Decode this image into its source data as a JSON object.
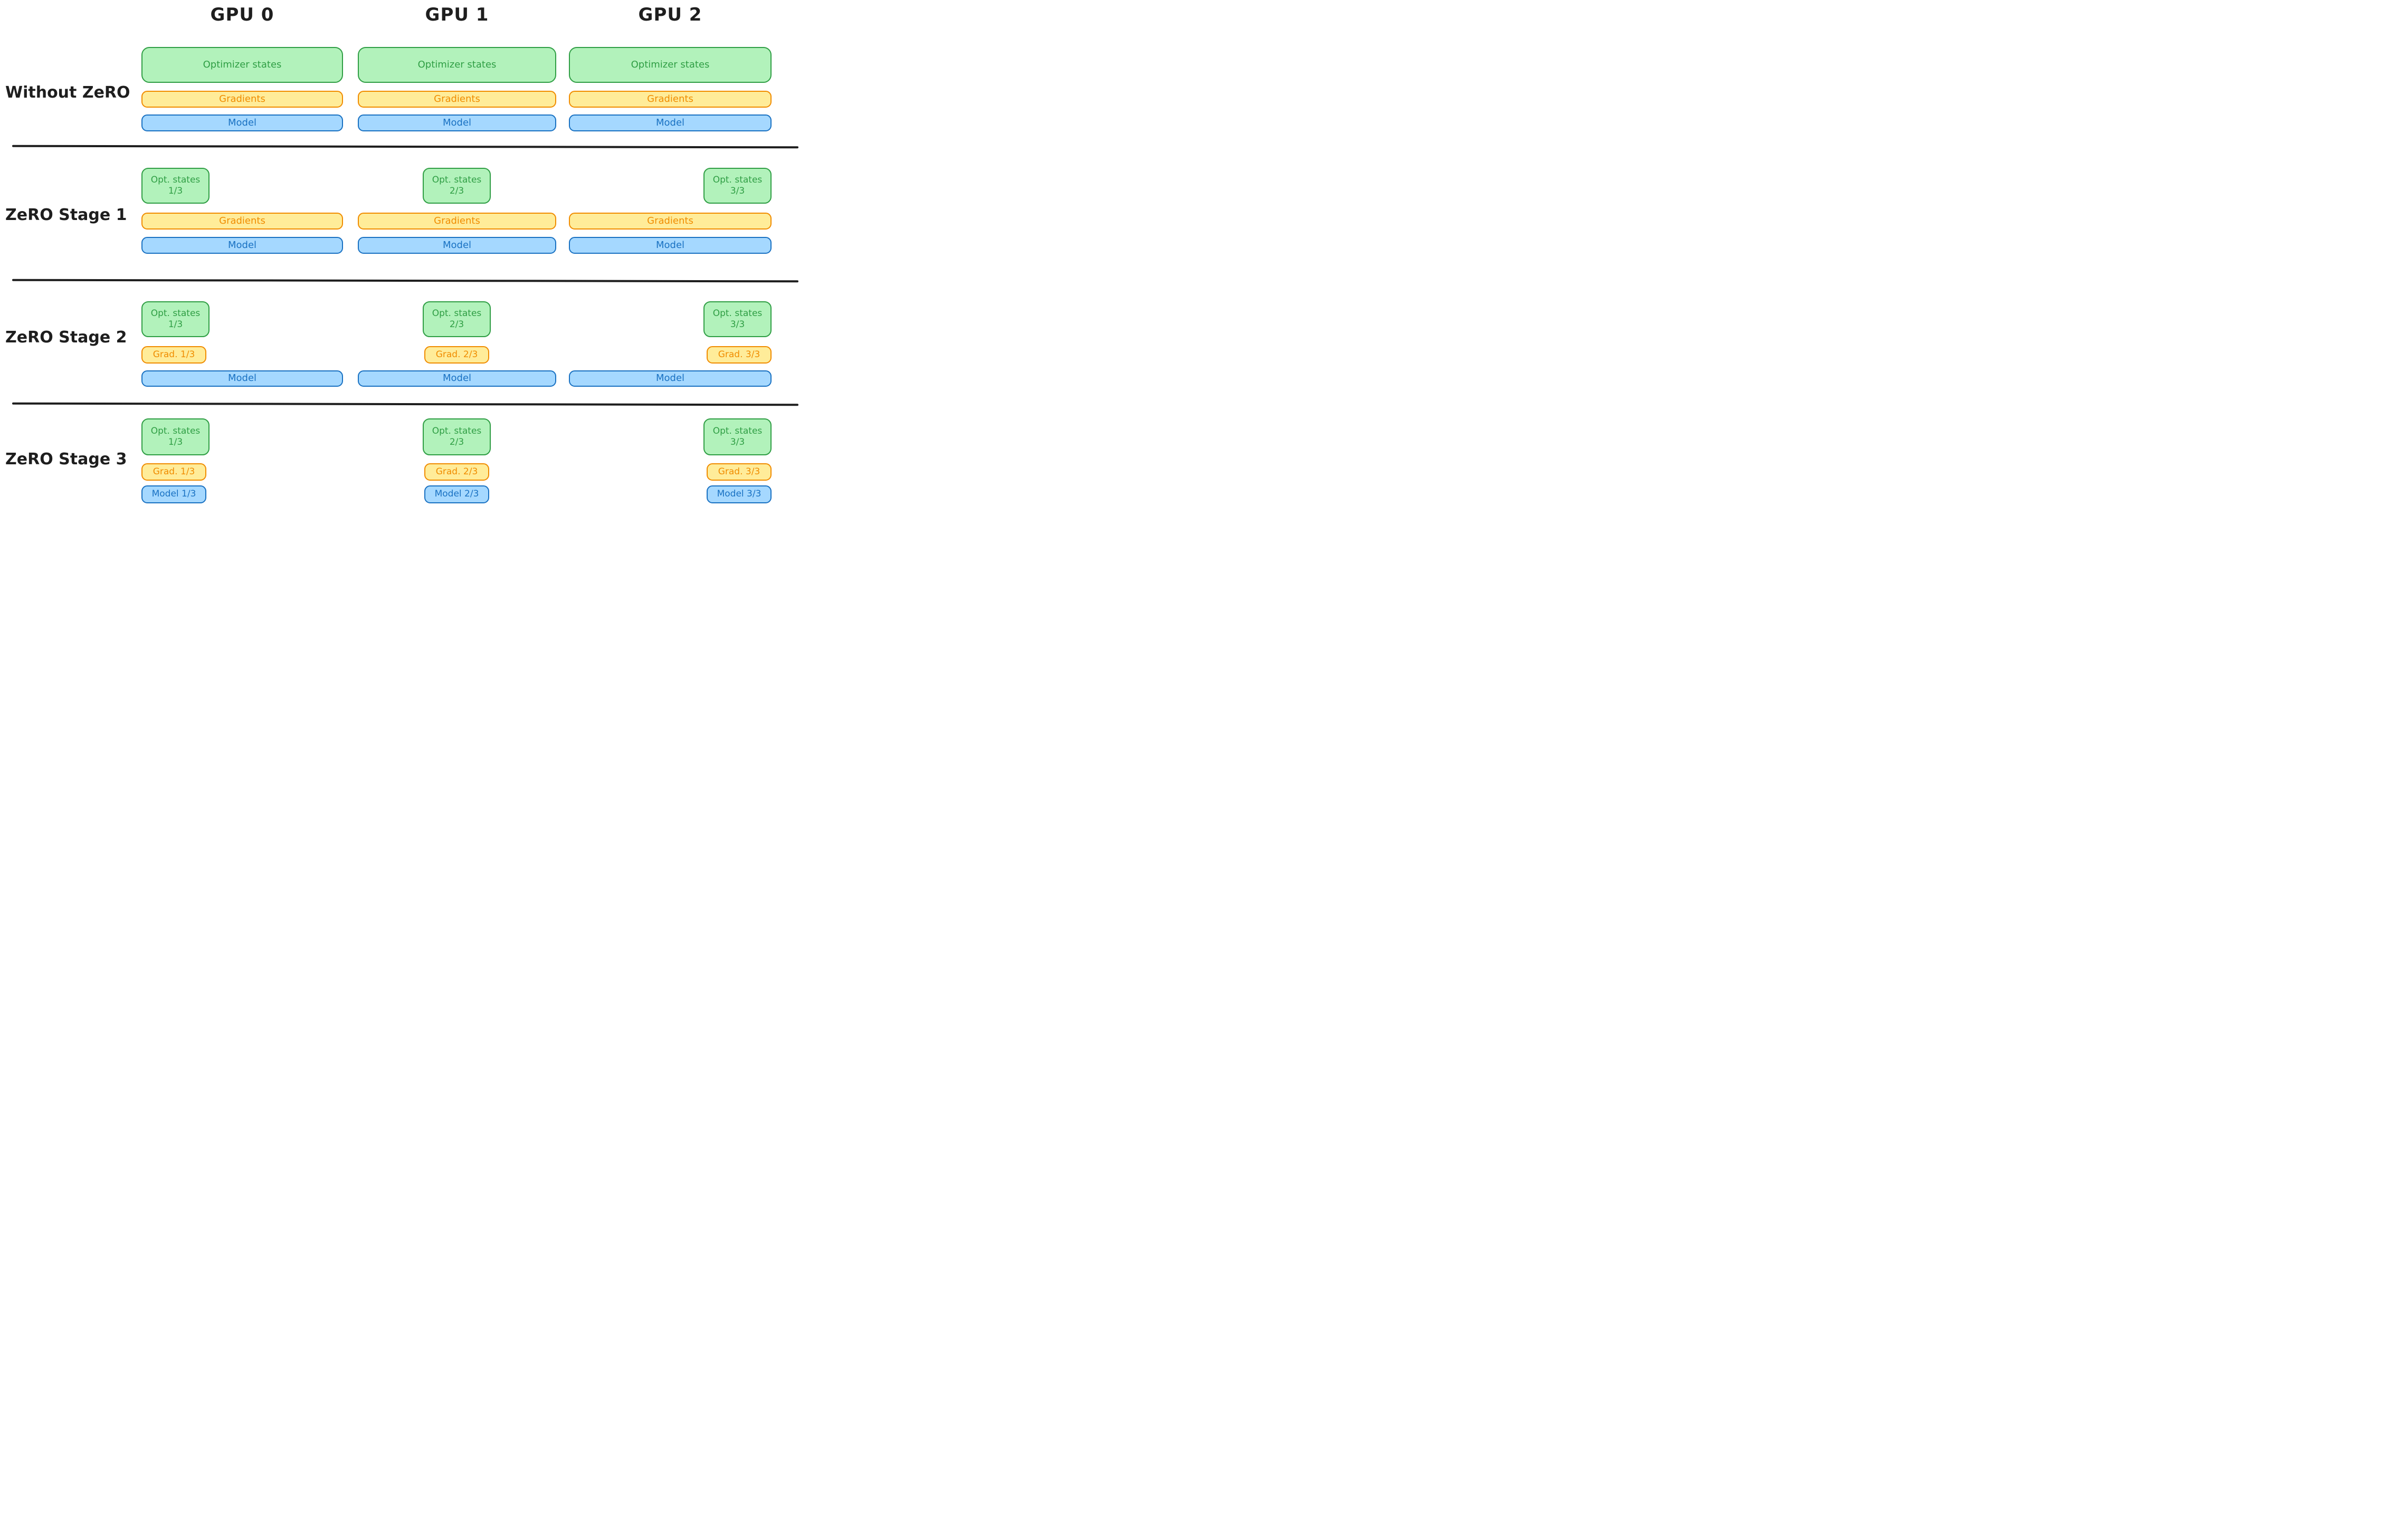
{
  "header": {
    "gpus": [
      "GPU 0",
      "GPU 1",
      "GPU 2"
    ]
  },
  "palette": {
    "optimizer": {
      "fill": "#b2f2bb",
      "stroke": "#2f9e44"
    },
    "gradients": {
      "fill": "#ffec99",
      "stroke": "#f08c00"
    },
    "model": {
      "fill": "#a5d8ff",
      "stroke": "#1971c2"
    },
    "heading_text": "#1e1e1e",
    "divider": "#1e1e1e"
  },
  "rows": [
    {
      "label": "Without ZeRO",
      "gpu0": {
        "optimizer": "Optimizer states",
        "gradients": "Gradients",
        "model": "Model"
      },
      "gpu1": {
        "optimizer": "Optimizer states",
        "gradients": "Gradients",
        "model": "Model"
      },
      "gpu2": {
        "optimizer": "Optimizer states",
        "gradients": "Gradients",
        "model": "Model"
      }
    },
    {
      "label": "ZeRO Stage 1",
      "gpu0": {
        "optimizer_line1": "Opt. states",
        "optimizer_line2": "1/3",
        "gradients": "Gradients",
        "model": "Model"
      },
      "gpu1": {
        "optimizer_line1": "Opt. states",
        "optimizer_line2": "2/3",
        "gradients": "Gradients",
        "model": "Model"
      },
      "gpu2": {
        "optimizer_line1": "Opt. states",
        "optimizer_line2": "3/3",
        "gradients": "Gradients",
        "model": "Model"
      }
    },
    {
      "label": "ZeRO Stage 2",
      "gpu0": {
        "optimizer_line1": "Opt. states",
        "optimizer_line2": "1/3",
        "gradients": "Grad. 1/3",
        "model": "Model"
      },
      "gpu1": {
        "optimizer_line1": "Opt. states",
        "optimizer_line2": "2/3",
        "gradients": "Grad. 2/3",
        "model": "Model"
      },
      "gpu2": {
        "optimizer_line1": "Opt. states",
        "optimizer_line2": "3/3",
        "gradients": "Grad. 3/3",
        "model": "Model"
      }
    },
    {
      "label": "ZeRO Stage 3",
      "gpu0": {
        "optimizer_line1": "Opt. states",
        "optimizer_line2": "1/3",
        "gradients": "Grad. 1/3",
        "model": "Model 1/3"
      },
      "gpu1": {
        "optimizer_line1": "Opt. states",
        "optimizer_line2": "2/3",
        "gradients": "Grad. 2/3",
        "model": "Model 2/3"
      },
      "gpu2": {
        "optimizer_line1": "Opt. states",
        "optimizer_line2": "3/3",
        "gradients": "Grad. 3/3",
        "model": "Model 3/3"
      }
    }
  ]
}
